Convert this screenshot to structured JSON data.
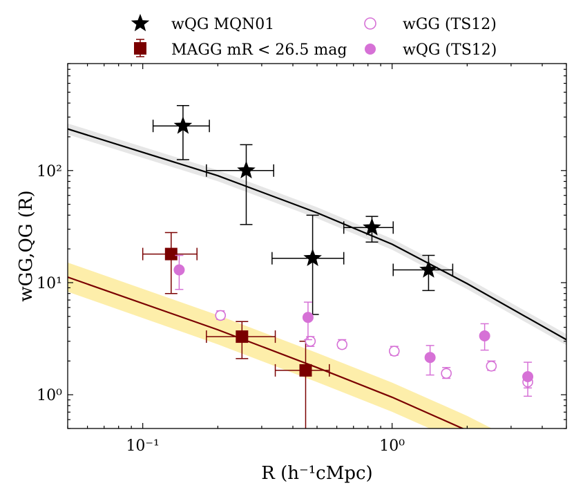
{
  "chart_data": {
    "type": "scatter",
    "title": "",
    "xlabel": "R (h⁻¹cMpc)",
    "ylabel": "wGG,QG (R)",
    "xscale": "log",
    "yscale": "log",
    "xlim": [
      0.05,
      5.0
    ],
    "ylim": [
      0.5,
      900
    ],
    "xticks": [
      {
        "value": 0.1,
        "label": "10⁻¹"
      },
      {
        "value": 1.0,
        "label": "10⁰"
      }
    ],
    "yticks": [
      {
        "value": 1,
        "label": "10⁰"
      },
      {
        "value": 10,
        "label": "10¹"
      },
      {
        "value": 100,
        "label": "10²"
      }
    ],
    "legend_position": "top, outside plot, two columns",
    "series": [
      {
        "name": "wQG MQN01",
        "marker": "star",
        "color": "#000000",
        "points": [
          {
            "x": 0.145,
            "y": 250,
            "xerr": [
              0.11,
              0.185
            ],
            "yerr": [
              125,
              380
            ]
          },
          {
            "x": 0.26,
            "y": 100,
            "xerr": [
              0.18,
              0.335
            ],
            "yerr": [
              33,
              170
            ]
          },
          {
            "x": 0.48,
            "y": 16.5,
            "xerr": [
              0.33,
              0.64
            ],
            "yerr": [
              5.2,
              40
            ]
          },
          {
            "x": 0.83,
            "y": 31,
            "xerr": [
              0.64,
              1.01
            ],
            "yerr": [
              23,
              39
            ]
          },
          {
            "x": 1.4,
            "y": 13,
            "xerr": [
              1.01,
              1.75
            ],
            "yerr": [
              8.5,
              17.5
            ]
          }
        ]
      },
      {
        "name": "MAGG mR < 26.5 mag",
        "marker": "square",
        "color": "#7a0000",
        "points": [
          {
            "x": 0.13,
            "y": 18,
            "xerr": [
              0.1,
              0.165
            ],
            "yerr": [
              8,
              28
            ]
          },
          {
            "x": 0.25,
            "y": 3.3,
            "xerr": [
              0.18,
              0.34
            ],
            "yerr": [
              2.1,
              4.5
            ]
          },
          {
            "x": 0.45,
            "y": 1.65,
            "xerr": [
              0.34,
              0.56
            ],
            "yerr": [
              0.45,
              3.0
            ]
          }
        ]
      },
      {
        "name": "wGG (TS12)",
        "marker": "open-circle",
        "color": "#d671d6",
        "points": [
          {
            "x": 0.205,
            "y": 5.1,
            "yerr": [
              4.7,
              5.6
            ]
          },
          {
            "x": 0.47,
            "y": 3.0,
            "yerr": [
              2.7,
              3.3
            ]
          },
          {
            "x": 0.63,
            "y": 2.8,
            "yerr": [
              2.6,
              3.1
            ]
          },
          {
            "x": 1.02,
            "y": 2.45,
            "yerr": [
              2.25,
              2.7
            ]
          },
          {
            "x": 1.65,
            "y": 1.55,
            "yerr": [
              1.4,
              1.75
            ]
          },
          {
            "x": 2.5,
            "y": 1.8,
            "yerr": [
              1.65,
              2.0
            ]
          },
          {
            "x": 3.5,
            "y": 1.3,
            "yerr": [
              1.15,
              1.55
            ]
          }
        ]
      },
      {
        "name": "wQG (TS12)",
        "marker": "filled-circle",
        "color": "#d671d6",
        "points": [
          {
            "x": 0.14,
            "y": 13,
            "yerr": [
              8.7,
              17.5
            ]
          },
          {
            "x": 0.46,
            "y": 4.9,
            "yerr": [
              3.1,
              6.7
            ]
          },
          {
            "x": 1.42,
            "y": 2.15,
            "yerr": [
              1.5,
              2.75
            ]
          },
          {
            "x": 2.35,
            "y": 3.35,
            "yerr": [
              2.5,
              4.3
            ]
          },
          {
            "x": 3.5,
            "y": 1.45,
            "yerr": [
              0.97,
              1.95
            ]
          }
        ]
      }
    ],
    "model_lines": [
      {
        "color": "#000000",
        "band_color": "#e6e6e6",
        "points": [
          [
            0.05,
            235
          ],
          [
            0.2,
            90
          ],
          [
            0.5,
            42
          ],
          [
            1.0,
            22
          ],
          [
            2.0,
            9.8
          ],
          [
            5.0,
            3.1
          ]
        ],
        "band_factor": 1.12
      },
      {
        "color": "#7a0000",
        "band_color": "#fdeeaa",
        "points": [
          [
            0.05,
            11.2
          ],
          [
            0.2,
            3.8
          ],
          [
            0.5,
            1.75
          ],
          [
            1.0,
            0.95
          ],
          [
            2.0,
            0.48
          ],
          [
            5.0,
            0.17
          ]
        ],
        "band_factor": 1.35
      }
    ]
  }
}
